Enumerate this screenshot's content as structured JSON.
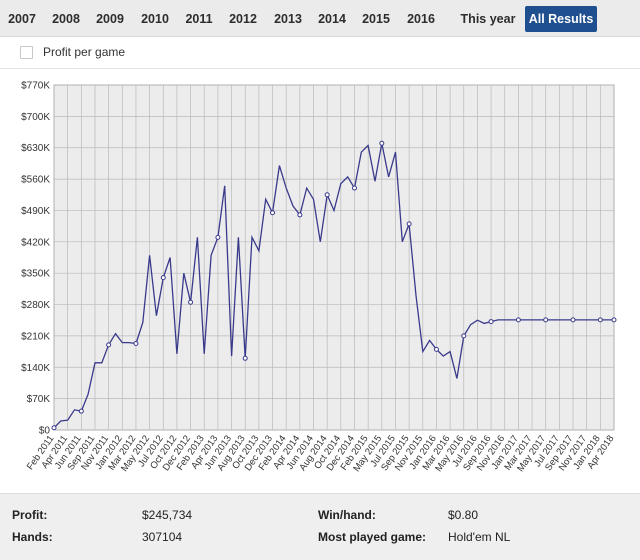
{
  "tabs": [
    {
      "label": "2007",
      "active": false
    },
    {
      "label": "2008",
      "active": false
    },
    {
      "label": "2009",
      "active": false
    },
    {
      "label": "2010",
      "active": false
    },
    {
      "label": "2011",
      "active": false
    },
    {
      "label": "2012",
      "active": false
    },
    {
      "label": "2013",
      "active": false
    },
    {
      "label": "2014",
      "active": false
    },
    {
      "label": "2015",
      "active": false
    },
    {
      "label": "2016",
      "active": false
    },
    {
      "label": "This year",
      "active": false
    },
    {
      "label": "All Results",
      "active": true
    }
  ],
  "options": {
    "profit_per_game_label": "Profit per game",
    "profit_per_game_checked": false
  },
  "colors": {
    "line": "#3a3a8c",
    "plot_bg": "#ececec",
    "grid": "#b9b9b9",
    "active_tab": "#1f4f8f"
  },
  "chart_data": {
    "type": "line",
    "title": "",
    "xlabel": "",
    "ylabel": "",
    "ylim": [
      0,
      770000
    ],
    "y_ticks": [
      0,
      70000,
      140000,
      210000,
      280000,
      350000,
      420000,
      490000,
      560000,
      630000,
      700000,
      770000
    ],
    "y_tick_labels": [
      "$0",
      "$70K",
      "$140K",
      "$210K",
      "$280K",
      "$350K",
      "$420K",
      "$490K",
      "$560K",
      "$630K",
      "$700K",
      "$770K"
    ],
    "x_labels": [
      "Feb 2011",
      "Apr 2011",
      "Jun 2011",
      "Sep 2011",
      "Nov 2011",
      "Jan 2012",
      "Mar 2012",
      "May 2012",
      "Jul 2012",
      "Oct 2012",
      "Dec 2012",
      "Feb 2013",
      "Apr 2013",
      "Jun 2013",
      "Aug 2013",
      "Oct 2013",
      "Dec 2013",
      "Feb 2014",
      "Apr 2014",
      "Jun 2014",
      "Aug 2014",
      "Oct 2014",
      "Dec 2014",
      "Feb 2015",
      "May 2015",
      "Jul 2015",
      "Sep 2015",
      "Nov 2015",
      "Jan 2016",
      "Mar 2016",
      "May 2016",
      "Jul 2016",
      "Sep 2016",
      "Nov 2016",
      "Jan 2017",
      "Mar 2017",
      "May 2017",
      "Jul 2017",
      "Sep 2017",
      "Nov 2017",
      "Jan 2018",
      "Apr 2018"
    ],
    "series": [
      {
        "name": "Profit",
        "x": [
          0,
          0.5,
          1,
          1.5,
          2,
          2.5,
          3,
          3.5,
          4,
          4.5,
          5,
          5.5,
          6,
          6.5,
          7,
          7.5,
          8,
          8.5,
          9,
          9.5,
          10,
          10.5,
          11,
          11.5,
          12,
          12.5,
          13,
          13.5,
          14,
          14.5,
          15,
          15.5,
          16,
          16.5,
          17,
          17.5,
          18,
          18.5,
          19,
          19.5,
          20,
          20.5,
          21,
          21.5,
          22,
          22.5,
          23,
          23.5,
          24,
          24.5,
          25,
          25.5,
          26,
          26.5,
          27,
          27.5,
          28,
          28.5,
          29,
          29.5,
          30,
          30.5,
          31,
          31.5,
          32,
          32.5,
          33,
          33.5,
          34,
          34.5,
          35,
          35.5,
          36,
          36.5,
          37,
          37.5,
          38,
          38.5,
          39,
          39.5,
          40,
          40.5,
          41
        ],
        "values": [
          5000,
          20000,
          22000,
          45000,
          42000,
          80000,
          150000,
          150000,
          190000,
          215000,
          195000,
          195000,
          193000,
          240000,
          390000,
          255000,
          340000,
          385000,
          170000,
          350000,
          285000,
          430000,
          170000,
          390000,
          430000,
          545000,
          165000,
          430000,
          160000,
          430000,
          400000,
          515000,
          485000,
          590000,
          540000,
          500000,
          480000,
          540000,
          515000,
          420000,
          525000,
          490000,
          550000,
          565000,
          540000,
          620000,
          635000,
          555000,
          640000,
          565000,
          620000,
          420000,
          460000,
          300000,
          175000,
          200000,
          180000,
          165000,
          175000,
          115000,
          210000,
          235000,
          245000,
          238000,
          242000,
          245734,
          245734,
          245734,
          245734,
          245734,
          245734,
          245734,
          245734,
          245734,
          245734,
          245734,
          245734,
          245734,
          245734,
          245734,
          245734,
          245734,
          245734
        ]
      }
    ]
  },
  "stats": {
    "profit_label": "Profit:",
    "profit_value": "$245,734",
    "hands_label": "Hands:",
    "hands_value": "307104",
    "winhand_label": "Win/hand:",
    "winhand_value": "$0.80",
    "mostplayed_label": "Most played game:",
    "mostplayed_value": "Hold'em NL"
  }
}
